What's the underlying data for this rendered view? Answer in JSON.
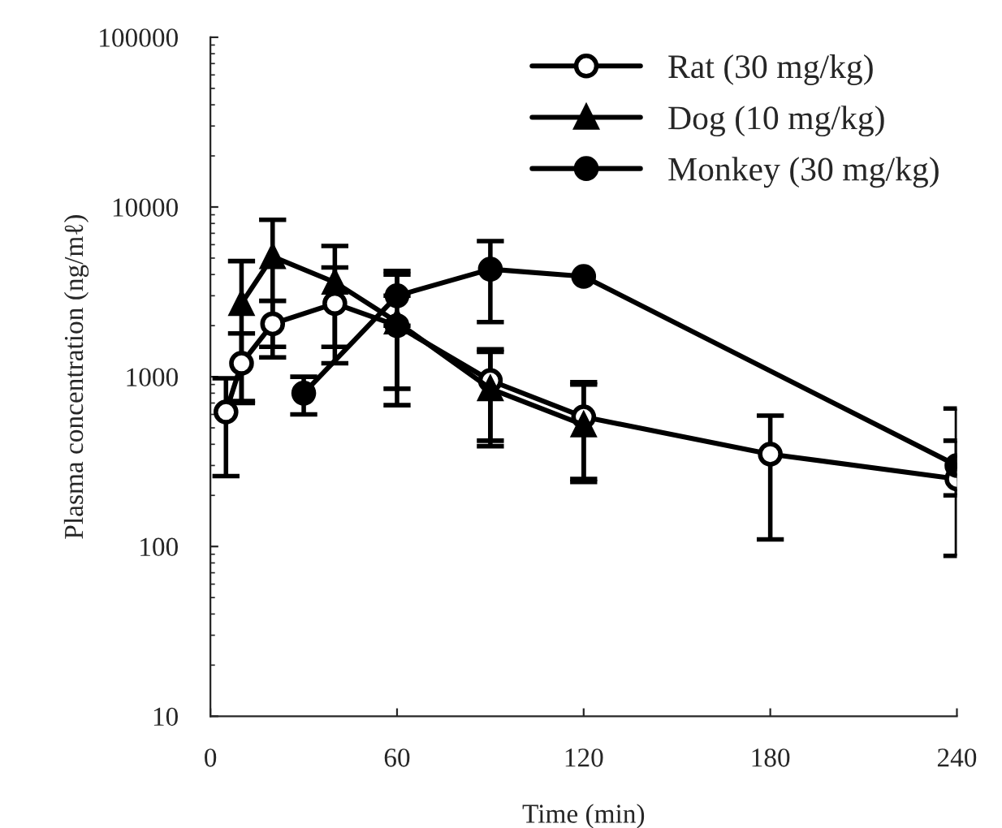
{
  "chart_data": {
    "type": "line",
    "xlabel": "Time (min)",
    "ylabel": "Plasma concentration (ng/mℓ)",
    "log": "y",
    "xlim": [
      0,
      240
    ],
    "xticks": [
      0,
      60,
      120,
      180,
      240
    ],
    "ylim": [
      10,
      100000
    ],
    "yticks": [
      10,
      100,
      1000,
      10000,
      100000
    ],
    "grid": false,
    "legend": "top right",
    "line_style": "solid",
    "series": [
      {
        "name": "Rat (30 mg/kg)",
        "color": "#000000",
        "marker": "circle",
        "x": [
          5,
          10,
          20,
          40,
          60,
          90,
          120,
          180,
          240
        ],
        "values": [
          620,
          1200,
          2050,
          2700,
          2000,
          950,
          580,
          350,
          250
        ],
        "errors": [
          [
            260,
            980
          ],
          [
            720,
            1800
          ],
          [
            1500,
            2800
          ],
          [
            1200,
            4400
          ],
          [
            680,
            2000
          ],
          [
            420,
            1450
          ],
          [
            250,
            930
          ],
          [
            110,
            590
          ],
          [
            88,
            420
          ]
        ]
      },
      {
        "name": "Dog (10 mg/kg)",
        "color": "#000000",
        "marker": "triangle",
        "x": [
          10,
          20,
          40,
          60,
          90,
          120
        ],
        "values": [
          2700,
          5100,
          3600,
          2100,
          850,
          520
        ],
        "errors": [
          [
            700,
            4800
          ],
          [
            1300,
            8400
          ],
          [
            1500,
            5900
          ],
          [
            850,
            4000
          ],
          [
            390,
            1400
          ],
          [
            240,
            900
          ]
        ]
      },
      {
        "name": "Monkey (30 mg/kg)",
        "color": "#000000",
        "marker": "circle",
        "x": [
          30,
          60,
          90,
          120,
          240
        ],
        "values": [
          800,
          3000,
          4300,
          3900,
          300
        ],
        "errors": [
          [
            600,
            1000
          ],
          [
            3000,
            4200
          ],
          [
            2100,
            6300
          ],
          null,
          [
            200,
            650
          ]
        ]
      }
    ]
  }
}
